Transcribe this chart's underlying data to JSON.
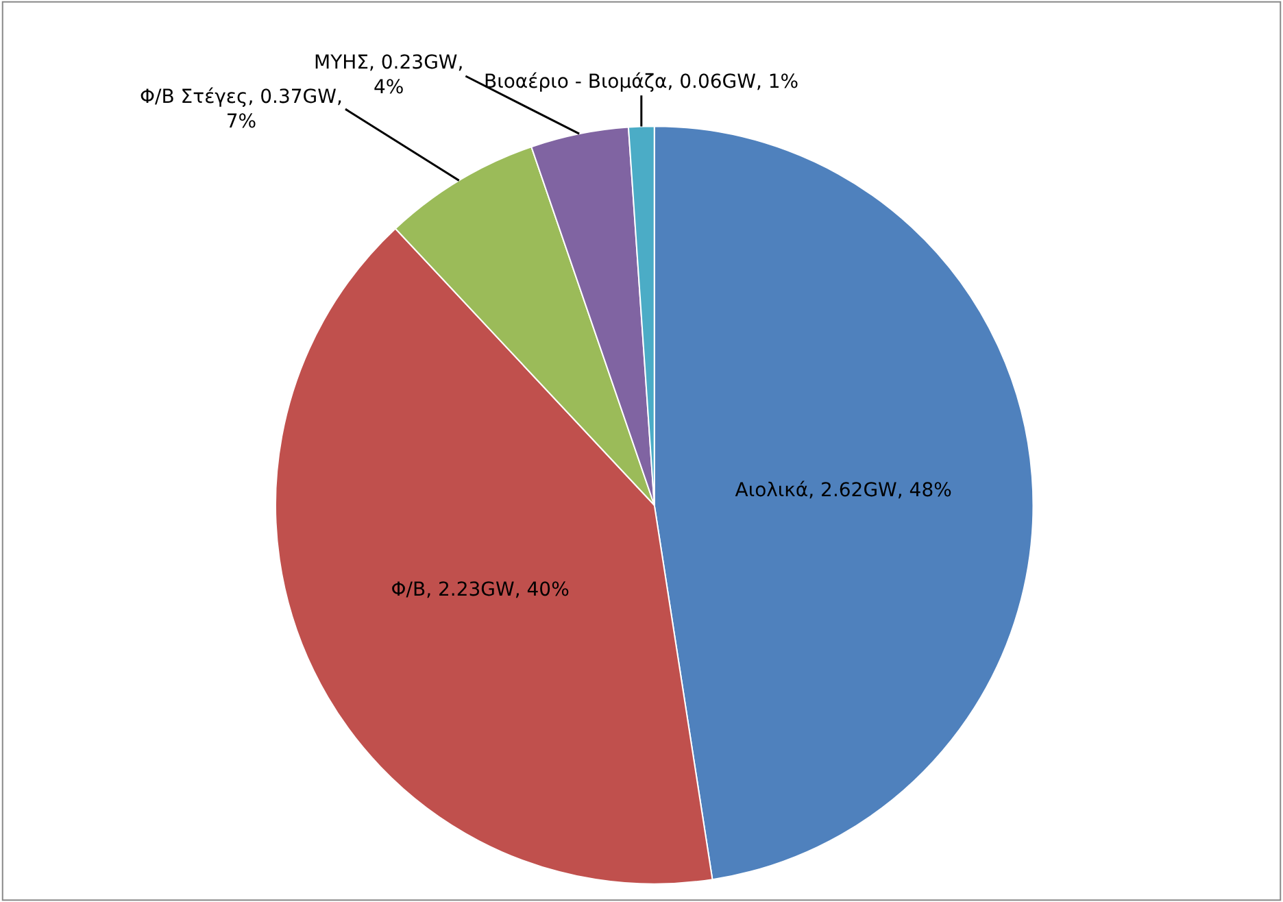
{
  "chart_data": {
    "type": "pie",
    "categories": [
      "Αιολικά",
      "Φ/Β",
      "Φ/Β Στέγες",
      "ΜΥΗΣ",
      "Βιοαέριο - Βιομάζα"
    ],
    "values": [
      2.62,
      2.23,
      0.37,
      0.23,
      0.06
    ],
    "value_labels": [
      "2.62GW, 48%",
      "2.23GW, 40%",
      "0.37GW, 7%",
      "0.23GW, 4%",
      "0.06GW, 1%"
    ],
    "colors": [
      "#4f81bd",
      "#c0504d",
      "#9bbb59",
      "#8064a2",
      "#4bacc6"
    ],
    "legend": false
  }
}
